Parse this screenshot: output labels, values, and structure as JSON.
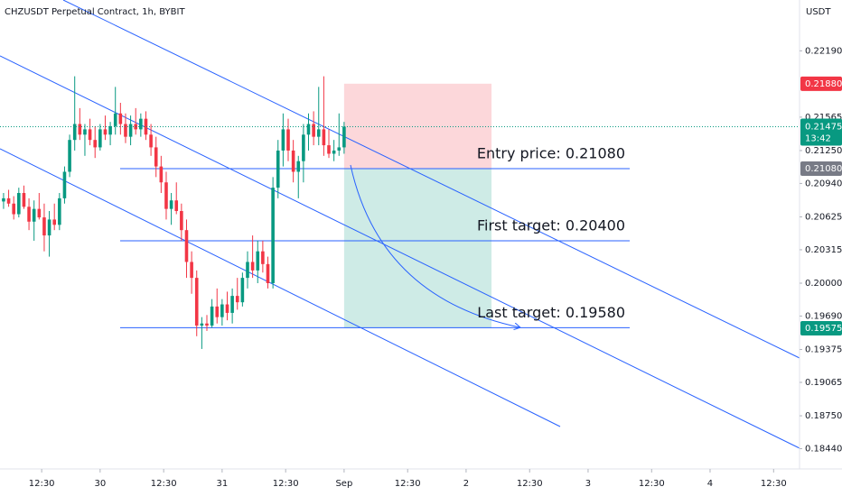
{
  "chart_data": {
    "type": "candlestick",
    "title": "CHZUSDT Perpetual Contract, 1h, BYBIT",
    "y_axis_label": "USDT",
    "x": [
      -67,
      -66,
      -65,
      -64,
      -63,
      -62,
      -61,
      -60,
      -59,
      -58,
      -57,
      -56,
      -55,
      -54,
      -53,
      -52,
      -51,
      -50,
      -49,
      -48,
      -47,
      -46,
      -45,
      -44,
      -43,
      -42,
      -41,
      -40,
      -39,
      -38,
      -37,
      -36,
      -35,
      -34,
      -33,
      -32,
      -31,
      -30,
      -29,
      -28,
      -27,
      -26,
      -25,
      -24,
      -23,
      -22,
      -21,
      -20,
      -19,
      -18,
      -17,
      -16,
      -15,
      -14,
      -13,
      -12,
      -11,
      -10,
      -9,
      -8,
      -7,
      -6,
      -5,
      -4,
      -3,
      -2,
      -1,
      0
    ],
    "open": [
      0.2077,
      0.208,
      0.2075,
      0.2065,
      0.2085,
      0.2072,
      0.2058,
      0.207,
      0.2062,
      0.2045,
      0.206,
      0.2055,
      0.208,
      0.2105,
      0.2135,
      0.215,
      0.214,
      0.2145,
      0.2135,
      0.2128,
      0.2145,
      0.214,
      0.2148,
      0.216,
      0.215,
      0.2138,
      0.215,
      0.2145,
      0.2155,
      0.214,
      0.2128,
      0.211,
      0.2095,
      0.207,
      0.2078,
      0.2068,
      0.205,
      0.202,
      0.2005,
      0.196,
      0.1962,
      0.196,
      0.1978,
      0.1968,
      0.198,
      0.1972,
      0.1988,
      0.1982,
      0.2005,
      0.202,
      0.2012,
      0.203,
      0.2018,
      0.2,
      0.209,
      0.2125,
      0.2145,
      0.2125,
      0.2105,
      0.2115,
      0.214,
      0.215,
      0.2138,
      0.2145,
      0.213,
      0.2122,
      0.2125,
      0.2128
    ],
    "high": [
      0.2085,
      0.2088,
      0.2082,
      0.209,
      0.2092,
      0.208,
      0.2078,
      0.2085,
      0.2075,
      0.2068,
      0.2075,
      0.2085,
      0.211,
      0.214,
      0.2195,
      0.2165,
      0.215,
      0.2155,
      0.2148,
      0.215,
      0.2158,
      0.2152,
      0.2185,
      0.217,
      0.216,
      0.2158,
      0.2165,
      0.216,
      0.2162,
      0.215,
      0.2138,
      0.212,
      0.2105,
      0.2085,
      0.2095,
      0.2075,
      0.206,
      0.203,
      0.2012,
      0.1968,
      0.197,
      0.1985,
      0.1995,
      0.1985,
      0.1992,
      0.1995,
      0.2005,
      0.201,
      0.203,
      0.2045,
      0.204,
      0.204,
      0.2025,
      0.21,
      0.2135,
      0.216,
      0.2155,
      0.2135,
      0.212,
      0.215,
      0.216,
      0.2162,
      0.2185,
      0.2195,
      0.2145,
      0.2135,
      0.216,
      0.2152
    ],
    "low": [
      0.207,
      0.2072,
      0.206,
      0.2062,
      0.207,
      0.205,
      0.204,
      0.206,
      0.203,
      0.2025,
      0.205,
      0.205,
      0.2075,
      0.21,
      0.2125,
      0.2135,
      0.212,
      0.213,
      0.2118,
      0.2125,
      0.2135,
      0.213,
      0.214,
      0.214,
      0.2132,
      0.213,
      0.214,
      0.2138,
      0.2135,
      0.212,
      0.21,
      0.2085,
      0.206,
      0.2055,
      0.2065,
      0.204,
      0.2005,
      0.199,
      0.195,
      0.1938,
      0.1955,
      0.1958,
      0.1962,
      0.196,
      0.1965,
      0.1962,
      0.1975,
      0.1978,
      0.1995,
      0.2005,
      0.2,
      0.201,
      0.1995,
      0.1995,
      0.208,
      0.211,
      0.2115,
      0.2095,
      0.208,
      0.2095,
      0.2125,
      0.213,
      0.213,
      0.212,
      0.2118,
      0.2115,
      0.212,
      0.2122
    ],
    "close": [
      0.208,
      0.2075,
      0.2065,
      0.2085,
      0.2072,
      0.2058,
      0.207,
      0.2062,
      0.2045,
      0.206,
      0.2055,
      0.208,
      0.2105,
      0.2135,
      0.215,
      0.214,
      0.2145,
      0.2135,
      0.2128,
      0.2145,
      0.214,
      0.2148,
      0.216,
      0.215,
      0.2138,
      0.215,
      0.2145,
      0.2155,
      0.214,
      0.2128,
      0.211,
      0.2095,
      0.207,
      0.2078,
      0.2068,
      0.205,
      0.202,
      0.2005,
      0.196,
      0.1962,
      0.196,
      0.1978,
      0.1968,
      0.198,
      0.1972,
      0.1988,
      0.1982,
      0.2005,
      0.202,
      0.2012,
      0.203,
      0.2018,
      0.2,
      0.209,
      0.2125,
      0.2145,
      0.2125,
      0.2105,
      0.2115,
      0.214,
      0.215,
      0.2138,
      0.2145,
      0.213,
      0.2122,
      0.2125,
      0.2128,
      0.21475
    ],
    "up_color": "#089981",
    "down_color": "#f23645",
    "xlim": [
      -67.7,
      89.6
    ],
    "xticks": [
      {
        "value": -59.5,
        "label": "12:30"
      },
      {
        "value": -48,
        "label": "30"
      },
      {
        "value": -35.5,
        "label": "12:30"
      },
      {
        "value": -24,
        "label": "31"
      },
      {
        "value": -11.5,
        "label": "12:30"
      },
      {
        "value": 0,
        "label": "Sep"
      },
      {
        "value": 12.5,
        "label": "12:30"
      },
      {
        "value": 24,
        "label": "2"
      },
      {
        "value": 36.5,
        "label": "12:30"
      },
      {
        "value": 48,
        "label": "3"
      },
      {
        "value": 60.5,
        "label": "12:30"
      },
      {
        "value": 72,
        "label": "4"
      },
      {
        "value": 84.5,
        "label": "12:30"
      }
    ],
    "ylim": [
      0.18249,
      0.22669
    ],
    "yticks": [
      {
        "value": 0.2219,
        "label": "0.22190"
      },
      {
        "value": 0.21565,
        "label": "0.21565"
      },
      {
        "value": 0.2125,
        "label": "0.21250"
      },
      {
        "value": 0.2094,
        "label": "0.20940"
      },
      {
        "value": 0.20625,
        "label": "0.20625"
      },
      {
        "value": 0.20315,
        "label": "0.20315"
      },
      {
        "value": 0.2,
        "label": "0.20000"
      },
      {
        "value": 0.1969,
        "label": "0.19690"
      },
      {
        "value": 0.19375,
        "label": "0.19375"
      },
      {
        "value": 0.19065,
        "label": "0.19065"
      },
      {
        "value": 0.1875,
        "label": "0.18750"
      },
      {
        "value": 0.1844,
        "label": "0.18440"
      }
    ],
    "levels": [
      {
        "label": "Entry price: 0.21080",
        "value": 0.2108
      },
      {
        "label": "First target: 0.20400",
        "value": 0.204
      },
      {
        "label": "Last target: 0.19580",
        "value": 0.1958
      }
    ],
    "position": {
      "stop": 0.2188,
      "entry": 0.2108,
      "target": 0.19575,
      "x": [
        0,
        29
      ]
    },
    "price_tags": [
      {
        "value": 0.2188,
        "label": "0.21880",
        "color": "#f23645"
      },
      {
        "value": 0.21475,
        "label": "0.21475",
        "sublabel": "13:42",
        "color": "#089981"
      },
      {
        "value": 0.2108,
        "label": "0.21080",
        "color": "#787b86"
      },
      {
        "value": 0.19575,
        "label": "0.19575",
        "color": "#089981"
      }
    ],
    "grid": false
  }
}
